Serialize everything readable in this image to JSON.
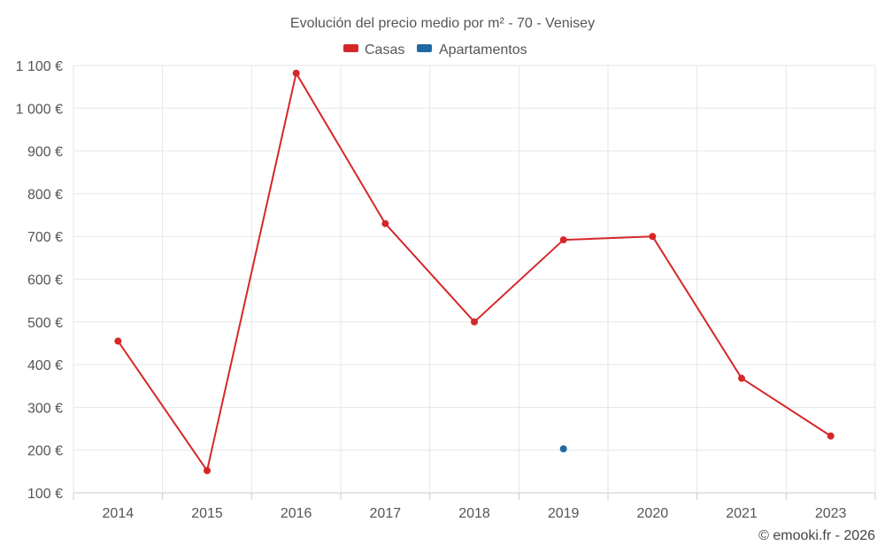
{
  "chart_data": {
    "type": "line",
    "title": "Evolución del precio medio por m² - 70 - Venisey",
    "categories": [
      "2014",
      "2015",
      "2016",
      "2017",
      "2018",
      "2019",
      "2020",
      "2021",
      "2023"
    ],
    "y_ticks": [
      "100 €",
      "200 €",
      "300 €",
      "400 €",
      "500 €",
      "600 €",
      "700 €",
      "800 €",
      "900 €",
      "1 000 €",
      "1 100 €"
    ],
    "ylim": [
      100,
      1100
    ],
    "grid": true,
    "legend_position": "top-center",
    "series": [
      {
        "name": "Casas",
        "color": "#d62728",
        "values": [
          455,
          152,
          1082,
          730,
          500,
          692,
          700,
          368,
          233
        ]
      },
      {
        "name": "Apartamentos",
        "color": "#1f6aa5",
        "values": [
          null,
          null,
          null,
          null,
          null,
          203,
          null,
          null,
          null
        ]
      }
    ],
    "credit": "© emooki.fr - 2026"
  }
}
